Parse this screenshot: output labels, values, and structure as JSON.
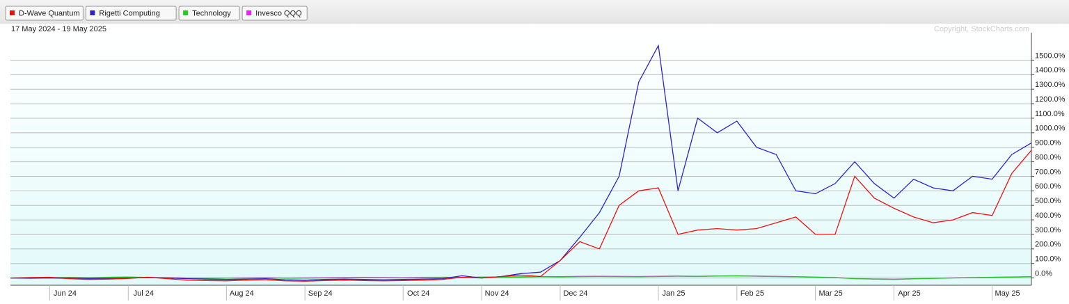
{
  "chart_data": {
    "type": "line",
    "subtitle": "17 May 2024 - 19 May 2025",
    "annotation": "Copyright, StockCharts.com",
    "categories": [
      null,
      null,
      "Jun 24",
      null,
      null,
      null,
      "Jul 24",
      null,
      null,
      null,
      null,
      "Aug 24",
      null,
      null,
      null,
      "Sep 24",
      null,
      null,
      null,
      null,
      "Oct 24",
      null,
      null,
      null,
      "Nov 24",
      null,
      null,
      null,
      "Dec 24",
      null,
      null,
      null,
      null,
      "Jan 25",
      null,
      null,
      null,
      "Feb 25",
      null,
      null,
      null,
      "Mar 25",
      null,
      null,
      null,
      "Apr 25",
      null,
      null,
      null,
      null,
      "May 25",
      null,
      null
    ],
    "series": [
      {
        "name": "D-Wave Quantum",
        "color": "#ee1111",
        "values": [
          0,
          3,
          5,
          -5,
          -10,
          -8,
          -3,
          5,
          -5,
          -15,
          -18,
          -20,
          -15,
          -12,
          -20,
          -22,
          -18,
          -15,
          -18,
          -20,
          -18,
          -15,
          -10,
          5,
          0,
          10,
          20,
          10,
          120,
          250,
          200,
          500,
          600,
          620,
          300,
          330,
          340,
          330,
          340,
          380,
          420,
          300,
          300,
          700,
          550,
          480,
          420,
          380,
          400,
          450,
          430,
          720,
          880
        ]
      },
      {
        "name": "Rigetti Computing",
        "color": "#3022c8",
        "values": [
          0,
          -2,
          0,
          -3,
          -5,
          -3,
          0,
          2,
          0,
          -5,
          -8,
          -10,
          -8,
          -5,
          -12,
          -15,
          -10,
          -8,
          -10,
          -12,
          -10,
          -8,
          -5,
          15,
          0,
          10,
          30,
          40,
          120,
          280,
          450,
          700,
          1350,
          1600,
          600,
          1100,
          1000,
          1080,
          900,
          850,
          600,
          580,
          650,
          800,
          650,
          550,
          680,
          620,
          600,
          700,
          680,
          850,
          930
        ]
      },
      {
        "name": "Technology",
        "color": "#22cc22",
        "values": [
          0,
          1,
          2,
          3,
          2,
          4,
          5,
          3,
          1,
          -2,
          -3,
          -1,
          0,
          1,
          -2,
          -1,
          0,
          1,
          2,
          1,
          0,
          2,
          3,
          2,
          4,
          5,
          6,
          8,
          7,
          9,
          10,
          9,
          8,
          10,
          12,
          11,
          13,
          14,
          12,
          10,
          8,
          5,
          2,
          -5,
          -8,
          -10,
          -6,
          -3,
          0,
          2,
          4,
          6,
          8
        ]
      },
      {
        "name": "Invesco QQQ",
        "color": "#ee22ee",
        "values": [
          0,
          1,
          3,
          4,
          3,
          5,
          6,
          4,
          2,
          0,
          -1,
          0,
          1,
          2,
          0,
          1,
          2,
          3,
          4,
          3,
          2,
          4,
          5,
          4,
          6,
          7,
          8,
          10,
          9,
          11,
          12,
          11,
          10,
          12,
          13,
          12,
          14,
          15,
          13,
          11,
          9,
          6,
          3,
          -4,
          -7,
          -9,
          -5,
          -2,
          1,
          3,
          5,
          7,
          9
        ]
      }
    ],
    "ylim": [
      -50,
      1665
    ],
    "yticks": [
      {
        "value": 0,
        "label": "0.0%"
      },
      {
        "value": 100,
        "label": "100.0%"
      },
      {
        "value": 200,
        "label": "200.0%"
      },
      {
        "value": 300,
        "label": "300.0%"
      },
      {
        "value": 400,
        "label": "400.0%"
      },
      {
        "value": 500,
        "label": "500.0%"
      },
      {
        "value": 600,
        "label": "600.0%"
      },
      {
        "value": 700,
        "label": "700.0%"
      },
      {
        "value": 800,
        "label": "800.0%"
      },
      {
        "value": 900,
        "label": "900.0%"
      },
      {
        "value": 1000,
        "label": "1000.0%"
      },
      {
        "value": 1100,
        "label": "1100.0%"
      },
      {
        "value": 1200,
        "label": "1200.0%"
      },
      {
        "value": 1300,
        "label": "1300.0%"
      },
      {
        "value": 1400,
        "label": "1400.0%"
      },
      {
        "value": 1500,
        "label": "1500.0%"
      }
    ],
    "grid": true
  }
}
